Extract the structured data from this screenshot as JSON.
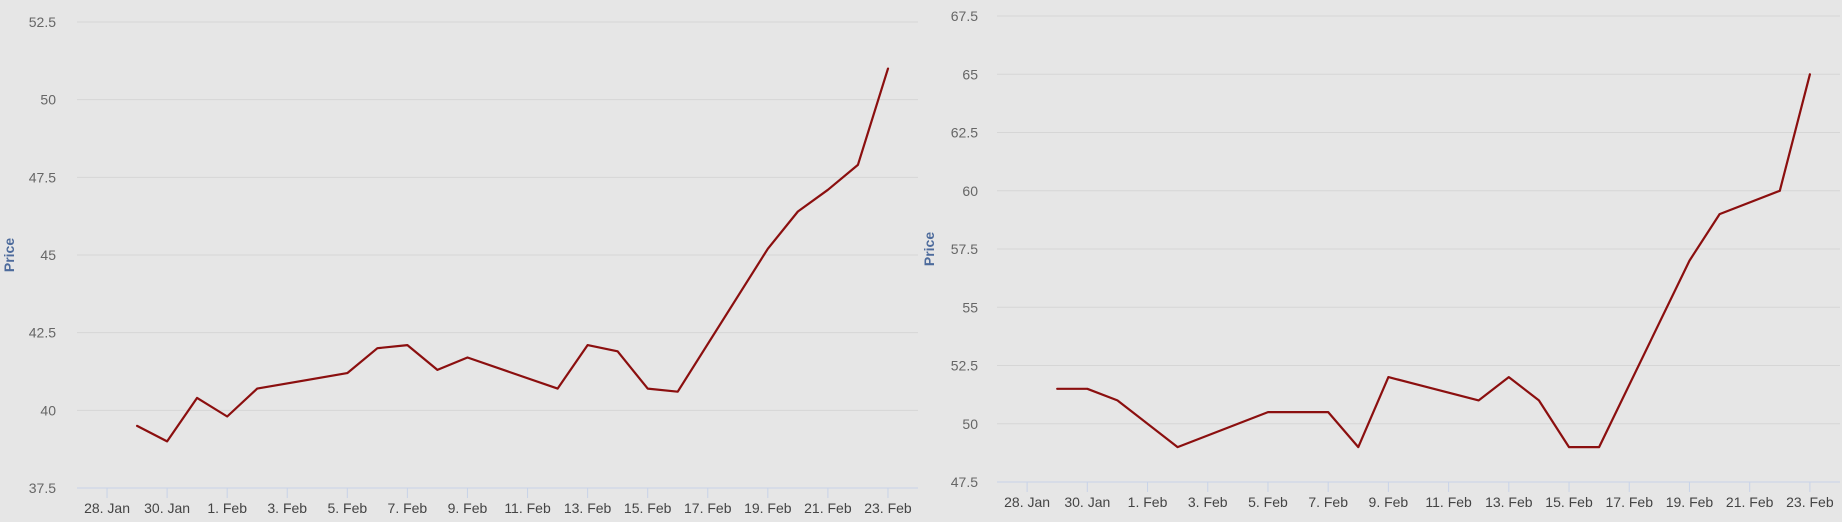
{
  "colors": {
    "background": "#e6e6e6",
    "series": "#8b0f0f",
    "axis_title": "#4d6b9c"
  },
  "chart_data": [
    {
      "type": "line",
      "ylabel": "Price",
      "ylim": [
        37.5,
        52.5
      ],
      "yticks": [
        "37.5",
        "40",
        "42.5",
        "45",
        "47.5",
        "50",
        "52.5"
      ],
      "xlim": [
        "2018-01-27",
        "2018-02-24"
      ],
      "xticks": [
        "28. Jan",
        "30. Jan",
        "1. Feb",
        "3. Feb",
        "5. Feb",
        "7. Feb",
        "9. Feb",
        "11. Feb",
        "13. Feb",
        "15. Feb",
        "17. Feb",
        "19. Feb",
        "21. Feb",
        "23. Feb"
      ],
      "grid": true,
      "series": [
        {
          "color": "#8b0f0f",
          "x": [
            "2018-01-29",
            "2018-01-30",
            "2018-01-31",
            "2018-02-01",
            "2018-02-02",
            "2018-02-05",
            "2018-02-06",
            "2018-02-07",
            "2018-02-08",
            "2018-02-09",
            "2018-02-12",
            "2018-02-13",
            "2018-02-14",
            "2018-02-15",
            "2018-02-16",
            "2018-02-19",
            "2018-02-20",
            "2018-02-21",
            "2018-02-22",
            "2018-02-23"
          ],
          "values": [
            39.5,
            39.0,
            40.4,
            39.8,
            40.7,
            41.2,
            42.0,
            42.1,
            41.3,
            41.7,
            40.7,
            42.1,
            41.9,
            40.7,
            40.6,
            45.2,
            46.4,
            47.1,
            47.9,
            51.0
          ]
        }
      ]
    },
    {
      "type": "line",
      "ylabel": "Price",
      "ylim": [
        47.5,
        67.5
      ],
      "yticks": [
        "47.5",
        "50",
        "52.5",
        "55",
        "57.5",
        "60",
        "62.5",
        "65",
        "67.5"
      ],
      "xlim": [
        "2018-01-27",
        "2018-02-24"
      ],
      "xticks": [
        "28. Jan",
        "30. Jan",
        "1. Feb",
        "3. Feb",
        "5. Feb",
        "7. Feb",
        "9. Feb",
        "11. Feb",
        "13. Feb",
        "15. Feb",
        "17. Feb",
        "19. Feb",
        "21. Feb",
        "23. Feb"
      ],
      "grid": true,
      "series": [
        {
          "color": "#8b0f0f",
          "x": [
            "2018-01-29",
            "2018-01-30",
            "2018-01-31",
            "2018-02-02",
            "2018-02-05",
            "2018-02-06",
            "2018-02-07",
            "2018-02-08",
            "2018-02-09",
            "2018-02-12",
            "2018-02-13",
            "2018-02-14",
            "2018-02-15",
            "2018-02-16",
            "2018-02-19",
            "2018-02-20",
            "2018-02-22",
            "2018-02-23"
          ],
          "values": [
            51.5,
            51.5,
            51.0,
            49.0,
            50.5,
            50.5,
            50.5,
            49.0,
            52.0,
            51.0,
            52.0,
            51.0,
            49.0,
            49.0,
            57.0,
            59.0,
            60.0,
            65.0
          ]
        }
      ]
    }
  ]
}
